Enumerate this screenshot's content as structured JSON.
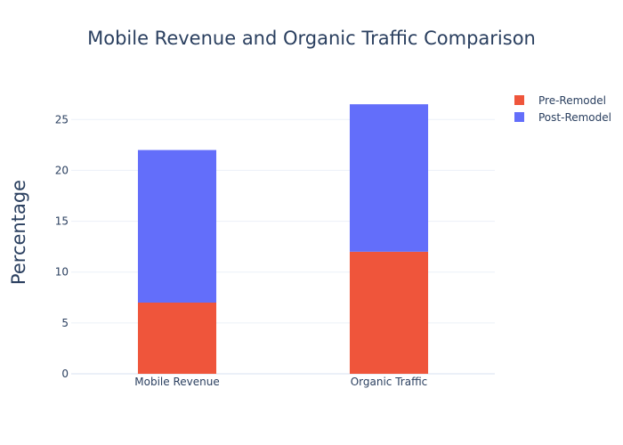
{
  "chart_data": {
    "type": "bar",
    "stacked": true,
    "title": "Mobile Revenue and Organic Traffic Comparison",
    "xlabel": "",
    "ylabel": "Percentage",
    "categories": [
      "Mobile Revenue",
      "Organic Traffic"
    ],
    "series": [
      {
        "name": "Pre-Remodel",
        "values": [
          7,
          12
        ],
        "color": "#ef553b"
      },
      {
        "name": "Post-Remodel",
        "values": [
          15,
          14.5
        ],
        "color": "#636efa"
      }
    ],
    "ylim": [
      0,
      28
    ],
    "yticks": [
      0,
      5,
      10,
      15,
      20,
      25
    ],
    "grid": true,
    "legend_position": "top-right"
  }
}
